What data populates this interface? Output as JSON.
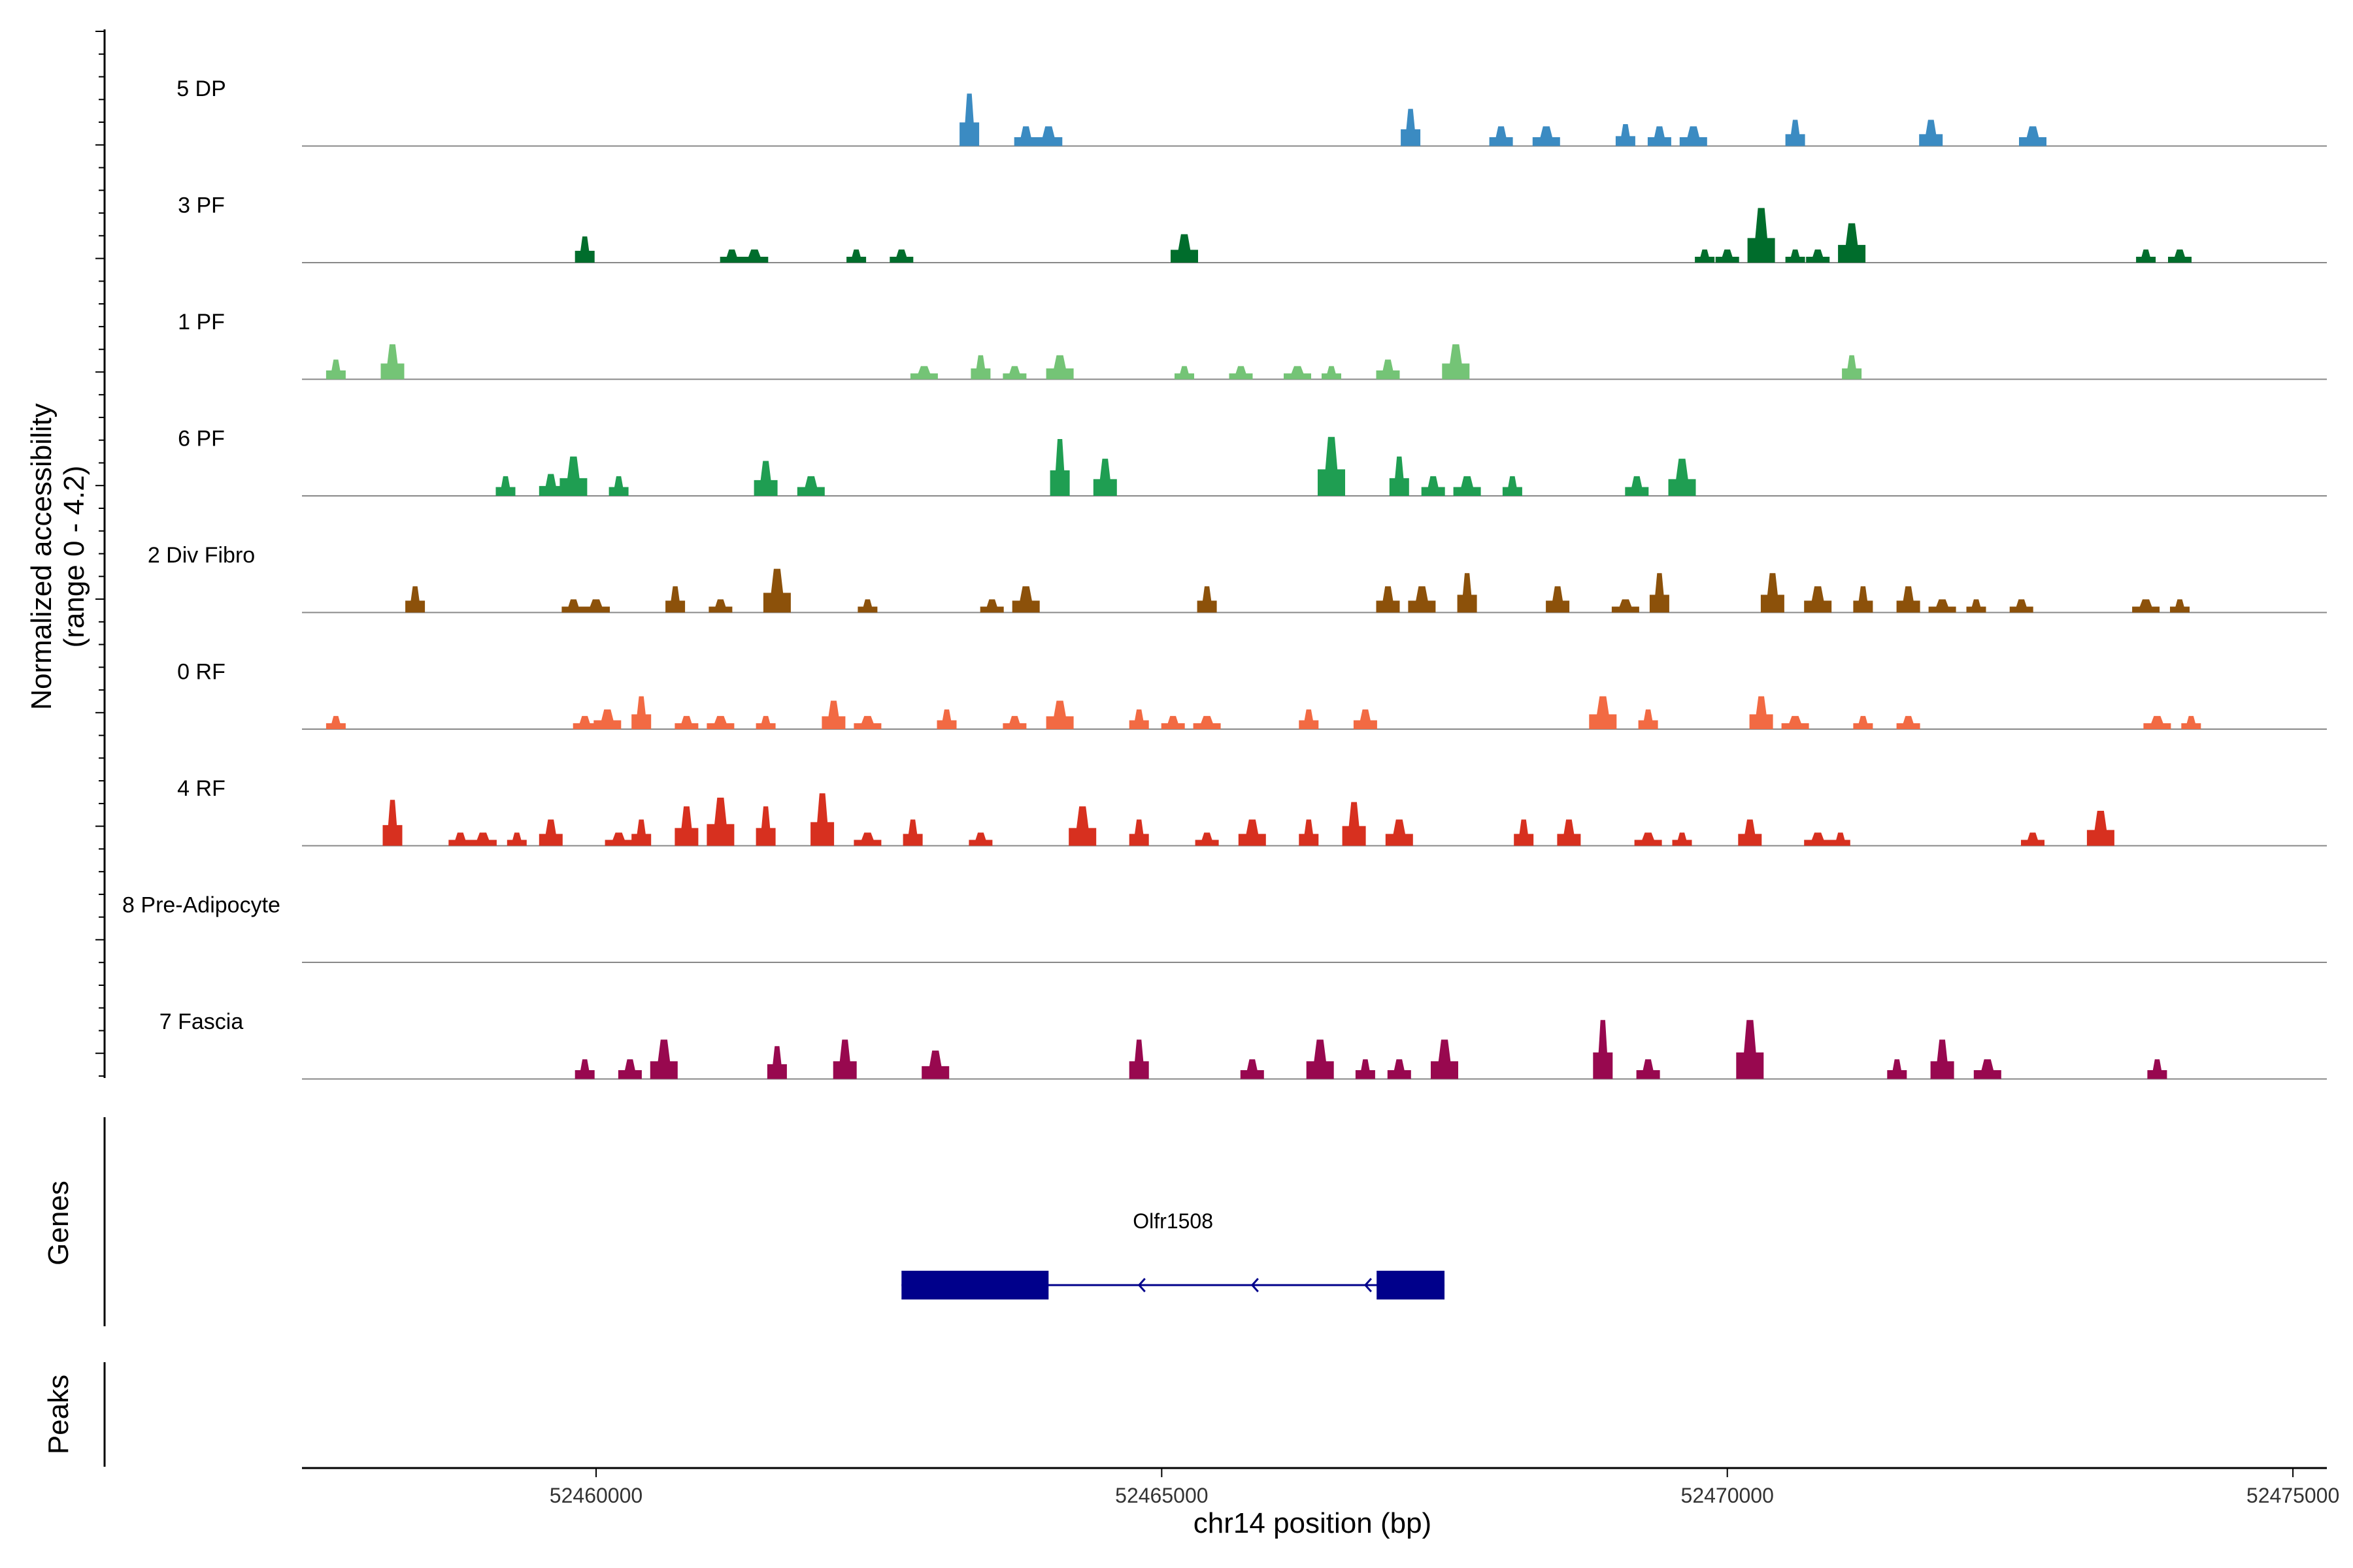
{
  "chart_data": {
    "type": "area",
    "ylabel_line1": "Normalized accessibility",
    "ylabel_line2": "(range 0 - 4.2)",
    "xlabel": "chr14 position (bp)",
    "xlim": [
      52457400,
      52475300
    ],
    "xticks": [
      52460000,
      52465000,
      52470000,
      52475000
    ],
    "xtick_labels": [
      "52460000",
      "52465000",
      "52470000",
      "52475000"
    ],
    "ylim": [
      0,
      4.2
    ],
    "tracks": [
      {
        "name": "5 DP",
        "color": "#3B8BC2",
        "peaks": [
          [
            52463300,
            2.4
          ],
          [
            52463800,
            0.9
          ],
          [
            52464000,
            0.9
          ],
          [
            52467200,
            1.7
          ],
          [
            52468000,
            0.9
          ],
          [
            52468400,
            0.9
          ],
          [
            52469100,
            1.0
          ],
          [
            52469400,
            0.9
          ],
          [
            52469700,
            0.9
          ],
          [
            52470600,
            1.2
          ],
          [
            52471800,
            1.2
          ],
          [
            52472700,
            0.9
          ]
        ]
      },
      {
        "name": "3 PF",
        "color": "#006D2C",
        "peaks": [
          [
            52459900,
            1.2
          ],
          [
            52461200,
            0.6
          ],
          [
            52461400,
            0.6
          ],
          [
            52462300,
            0.6
          ],
          [
            52462700,
            0.6
          ],
          [
            52465200,
            1.3
          ],
          [
            52469800,
            0.6
          ],
          [
            52470000,
            0.6
          ],
          [
            52470300,
            2.5
          ],
          [
            52470600,
            0.6
          ],
          [
            52470800,
            0.6
          ],
          [
            52471100,
            1.8
          ],
          [
            52473700,
            0.6
          ],
          [
            52474000,
            0.6
          ]
        ]
      },
      {
        "name": "1 PF",
        "color": "#74C476",
        "peaks": [
          [
            52457700,
            0.9
          ],
          [
            52458200,
            1.6
          ],
          [
            52462900,
            0.6
          ],
          [
            52463400,
            1.1
          ],
          [
            52463700,
            0.6
          ],
          [
            52464100,
            1.1
          ],
          [
            52465200,
            0.6
          ],
          [
            52465700,
            0.6
          ],
          [
            52466200,
            0.6
          ],
          [
            52466500,
            0.6
          ],
          [
            52467000,
            0.9
          ],
          [
            52467600,
            1.6
          ],
          [
            52471100,
            1.1
          ]
        ]
      },
      {
        "name": "6 PF",
        "color": "#1F9E52",
        "peaks": [
          [
            52459200,
            0.9
          ],
          [
            52459600,
            1.0
          ],
          [
            52459800,
            1.8
          ],
          [
            52460200,
            0.9
          ],
          [
            52461500,
            1.6
          ],
          [
            52461900,
            0.9
          ],
          [
            52464100,
            2.6
          ],
          [
            52464500,
            1.7
          ],
          [
            52466500,
            2.7
          ],
          [
            52467100,
            1.8
          ],
          [
            52467400,
            0.9
          ],
          [
            52467700,
            0.9
          ],
          [
            52468100,
            0.9
          ],
          [
            52469200,
            0.9
          ],
          [
            52469600,
            1.7
          ]
        ]
      },
      {
        "name": "2 Div Fibro",
        "color": "#8C510A",
        "peaks": [
          [
            52458400,
            1.2
          ],
          [
            52459800,
            0.6
          ],
          [
            52460000,
            0.6
          ],
          [
            52460700,
            1.2
          ],
          [
            52461100,
            0.6
          ],
          [
            52461600,
            2.0
          ],
          [
            52462400,
            0.6
          ],
          [
            52463500,
            0.6
          ],
          [
            52463800,
            1.2
          ],
          [
            52465400,
            1.2
          ],
          [
            52467000,
            1.2
          ],
          [
            52467300,
            1.2
          ],
          [
            52467700,
            1.8
          ],
          [
            52468500,
            1.2
          ],
          [
            52469100,
            0.6
          ],
          [
            52469400,
            1.8
          ],
          [
            52470400,
            1.8
          ],
          [
            52470800,
            1.2
          ],
          [
            52471200,
            1.2
          ],
          [
            52471600,
            1.2
          ],
          [
            52471900,
            0.6
          ],
          [
            52472200,
            0.6
          ],
          [
            52472600,
            0.6
          ],
          [
            52473700,
            0.6
          ],
          [
            52474000,
            0.6
          ]
        ]
      },
      {
        "name": "0 RF",
        "color": "#F26A43",
        "peaks": [
          [
            52457700,
            0.6
          ],
          [
            52459900,
            0.6
          ],
          [
            52460100,
            0.9
          ],
          [
            52460400,
            1.5
          ],
          [
            52460800,
            0.6
          ],
          [
            52461100,
            0.6
          ],
          [
            52461500,
            0.6
          ],
          [
            52462100,
            1.3
          ],
          [
            52462400,
            0.6
          ],
          [
            52463100,
            0.9
          ],
          [
            52463700,
            0.6
          ],
          [
            52464100,
            1.3
          ],
          [
            52464800,
            0.9
          ],
          [
            52465100,
            0.6
          ],
          [
            52465400,
            0.6
          ],
          [
            52466300,
            0.9
          ],
          [
            52466800,
            0.9
          ],
          [
            52468900,
            1.5
          ],
          [
            52469300,
            0.9
          ],
          [
            52470300,
            1.5
          ],
          [
            52470600,
            0.6
          ],
          [
            52471200,
            0.6
          ],
          [
            52471600,
            0.6
          ],
          [
            52473800,
            0.6
          ],
          [
            52474100,
            0.6
          ]
        ]
      },
      {
        "name": "4 RF",
        "color": "#D7301F",
        "peaks": [
          [
            52458200,
            2.1
          ],
          [
            52458800,
            0.6
          ],
          [
            52459000,
            0.6
          ],
          [
            52459300,
            0.6
          ],
          [
            52459600,
            1.2
          ],
          [
            52460200,
            0.6
          ],
          [
            52460400,
            1.2
          ],
          [
            52460800,
            1.8
          ],
          [
            52461100,
            2.2
          ],
          [
            52461500,
            1.8
          ],
          [
            52462000,
            2.4
          ],
          [
            52462400,
            0.6
          ],
          [
            52462800,
            1.2
          ],
          [
            52463400,
            0.6
          ],
          [
            52464300,
            1.8
          ],
          [
            52464800,
            1.2
          ],
          [
            52465400,
            0.6
          ],
          [
            52465800,
            1.2
          ],
          [
            52466300,
            1.2
          ],
          [
            52466700,
            2.0
          ],
          [
            52467100,
            1.2
          ],
          [
            52468200,
            1.2
          ],
          [
            52468600,
            1.2
          ],
          [
            52469300,
            0.6
          ],
          [
            52469600,
            0.6
          ],
          [
            52470200,
            1.2
          ],
          [
            52470800,
            0.6
          ],
          [
            52471000,
            0.6
          ],
          [
            52472700,
            0.6
          ],
          [
            52473300,
            1.6
          ]
        ]
      },
      {
        "name": "8 Pre-Adipocyte",
        "color": "#5B0F6B",
        "peaks": []
      },
      {
        "name": "7 Fascia",
        "color": "#98084F",
        "peaks": [
          [
            52459900,
            0.9
          ],
          [
            52460300,
            0.9
          ],
          [
            52460600,
            1.8
          ],
          [
            52461600,
            1.5
          ],
          [
            52462200,
            1.8
          ],
          [
            52463000,
            1.3
          ],
          [
            52464800,
            1.8
          ],
          [
            52465800,
            0.9
          ],
          [
            52466400,
            1.8
          ],
          [
            52466800,
            0.9
          ],
          [
            52467100,
            0.9
          ],
          [
            52467500,
            1.8
          ],
          [
            52468900,
            2.7
          ],
          [
            52469300,
            0.9
          ],
          [
            52470200,
            2.7
          ],
          [
            52471500,
            0.9
          ],
          [
            52471900,
            1.8
          ],
          [
            52472300,
            0.9
          ],
          [
            52473800,
            0.9
          ]
        ]
      }
    ],
    "genes_label": "Genes",
    "peaks_label": "Peaks",
    "gene": {
      "name": "Olfr1508",
      "strand": "-",
      "start": 52462700,
      "end": 52467500,
      "exons": [
        [
          52462700,
          52464000
        ],
        [
          52466900,
          52467500
        ]
      ],
      "arrows": [
        52464800,
        52465800,
        52466800
      ]
    },
    "colors": {
      "axis": "#000000",
      "baseline": "#888888",
      "gene": "#00008B",
      "tick_text": "#333333"
    }
  }
}
